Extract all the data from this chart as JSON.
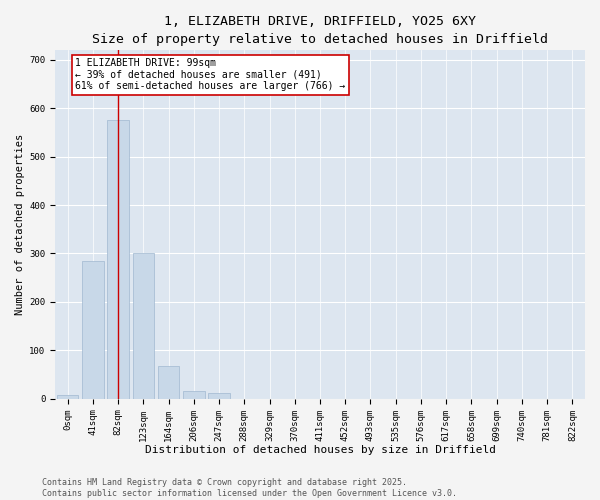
{
  "title_line1": "1, ELIZABETH DRIVE, DRIFFIELD, YO25 6XY",
  "title_line2": "Size of property relative to detached houses in Driffield",
  "xlabel": "Distribution of detached houses by size in Driffield",
  "ylabel": "Number of detached properties",
  "footer_line1": "Contains HM Land Registry data © Crown copyright and database right 2025.",
  "footer_line2": "Contains public sector information licensed under the Open Government Licence v3.0.",
  "bin_labels": [
    "0sqm",
    "41sqm",
    "82sqm",
    "123sqm",
    "164sqm",
    "206sqm",
    "247sqm",
    "288sqm",
    "329sqm",
    "370sqm",
    "411sqm",
    "452sqm",
    "493sqm",
    "535sqm",
    "576sqm",
    "617sqm",
    "658sqm",
    "699sqm",
    "740sqm",
    "781sqm",
    "822sqm"
  ],
  "bar_values": [
    8,
    285,
    575,
    300,
    67,
    17,
    12,
    0,
    0,
    0,
    0,
    0,
    0,
    0,
    0,
    0,
    0,
    0,
    0,
    0,
    0
  ],
  "bar_color": "#c8d8e8",
  "bar_edgecolor": "#a0b8d0",
  "ylim": [
    0,
    720
  ],
  "yticks": [
    0,
    100,
    200,
    300,
    400,
    500,
    600,
    700
  ],
  "property_bin_index": 2,
  "vline_color": "#cc0000",
  "annotation_text": "1 ELIZABETH DRIVE: 99sqm\n← 39% of detached houses are smaller (491)\n61% of semi-detached houses are larger (766) →",
  "annotation_box_color": "#ffffff",
  "annotation_box_edgecolor": "#cc0000",
  "annotation_fontsize": 7.0,
  "background_color": "#dde6f0",
  "fig_background_color": "#f4f4f4",
  "grid_color": "#ffffff",
  "title_fontsize": 9.5,
  "subtitle_fontsize": 8.5,
  "xlabel_fontsize": 8.0,
  "ylabel_fontsize": 7.5,
  "tick_fontsize": 6.5,
  "footer_fontsize": 6.0
}
